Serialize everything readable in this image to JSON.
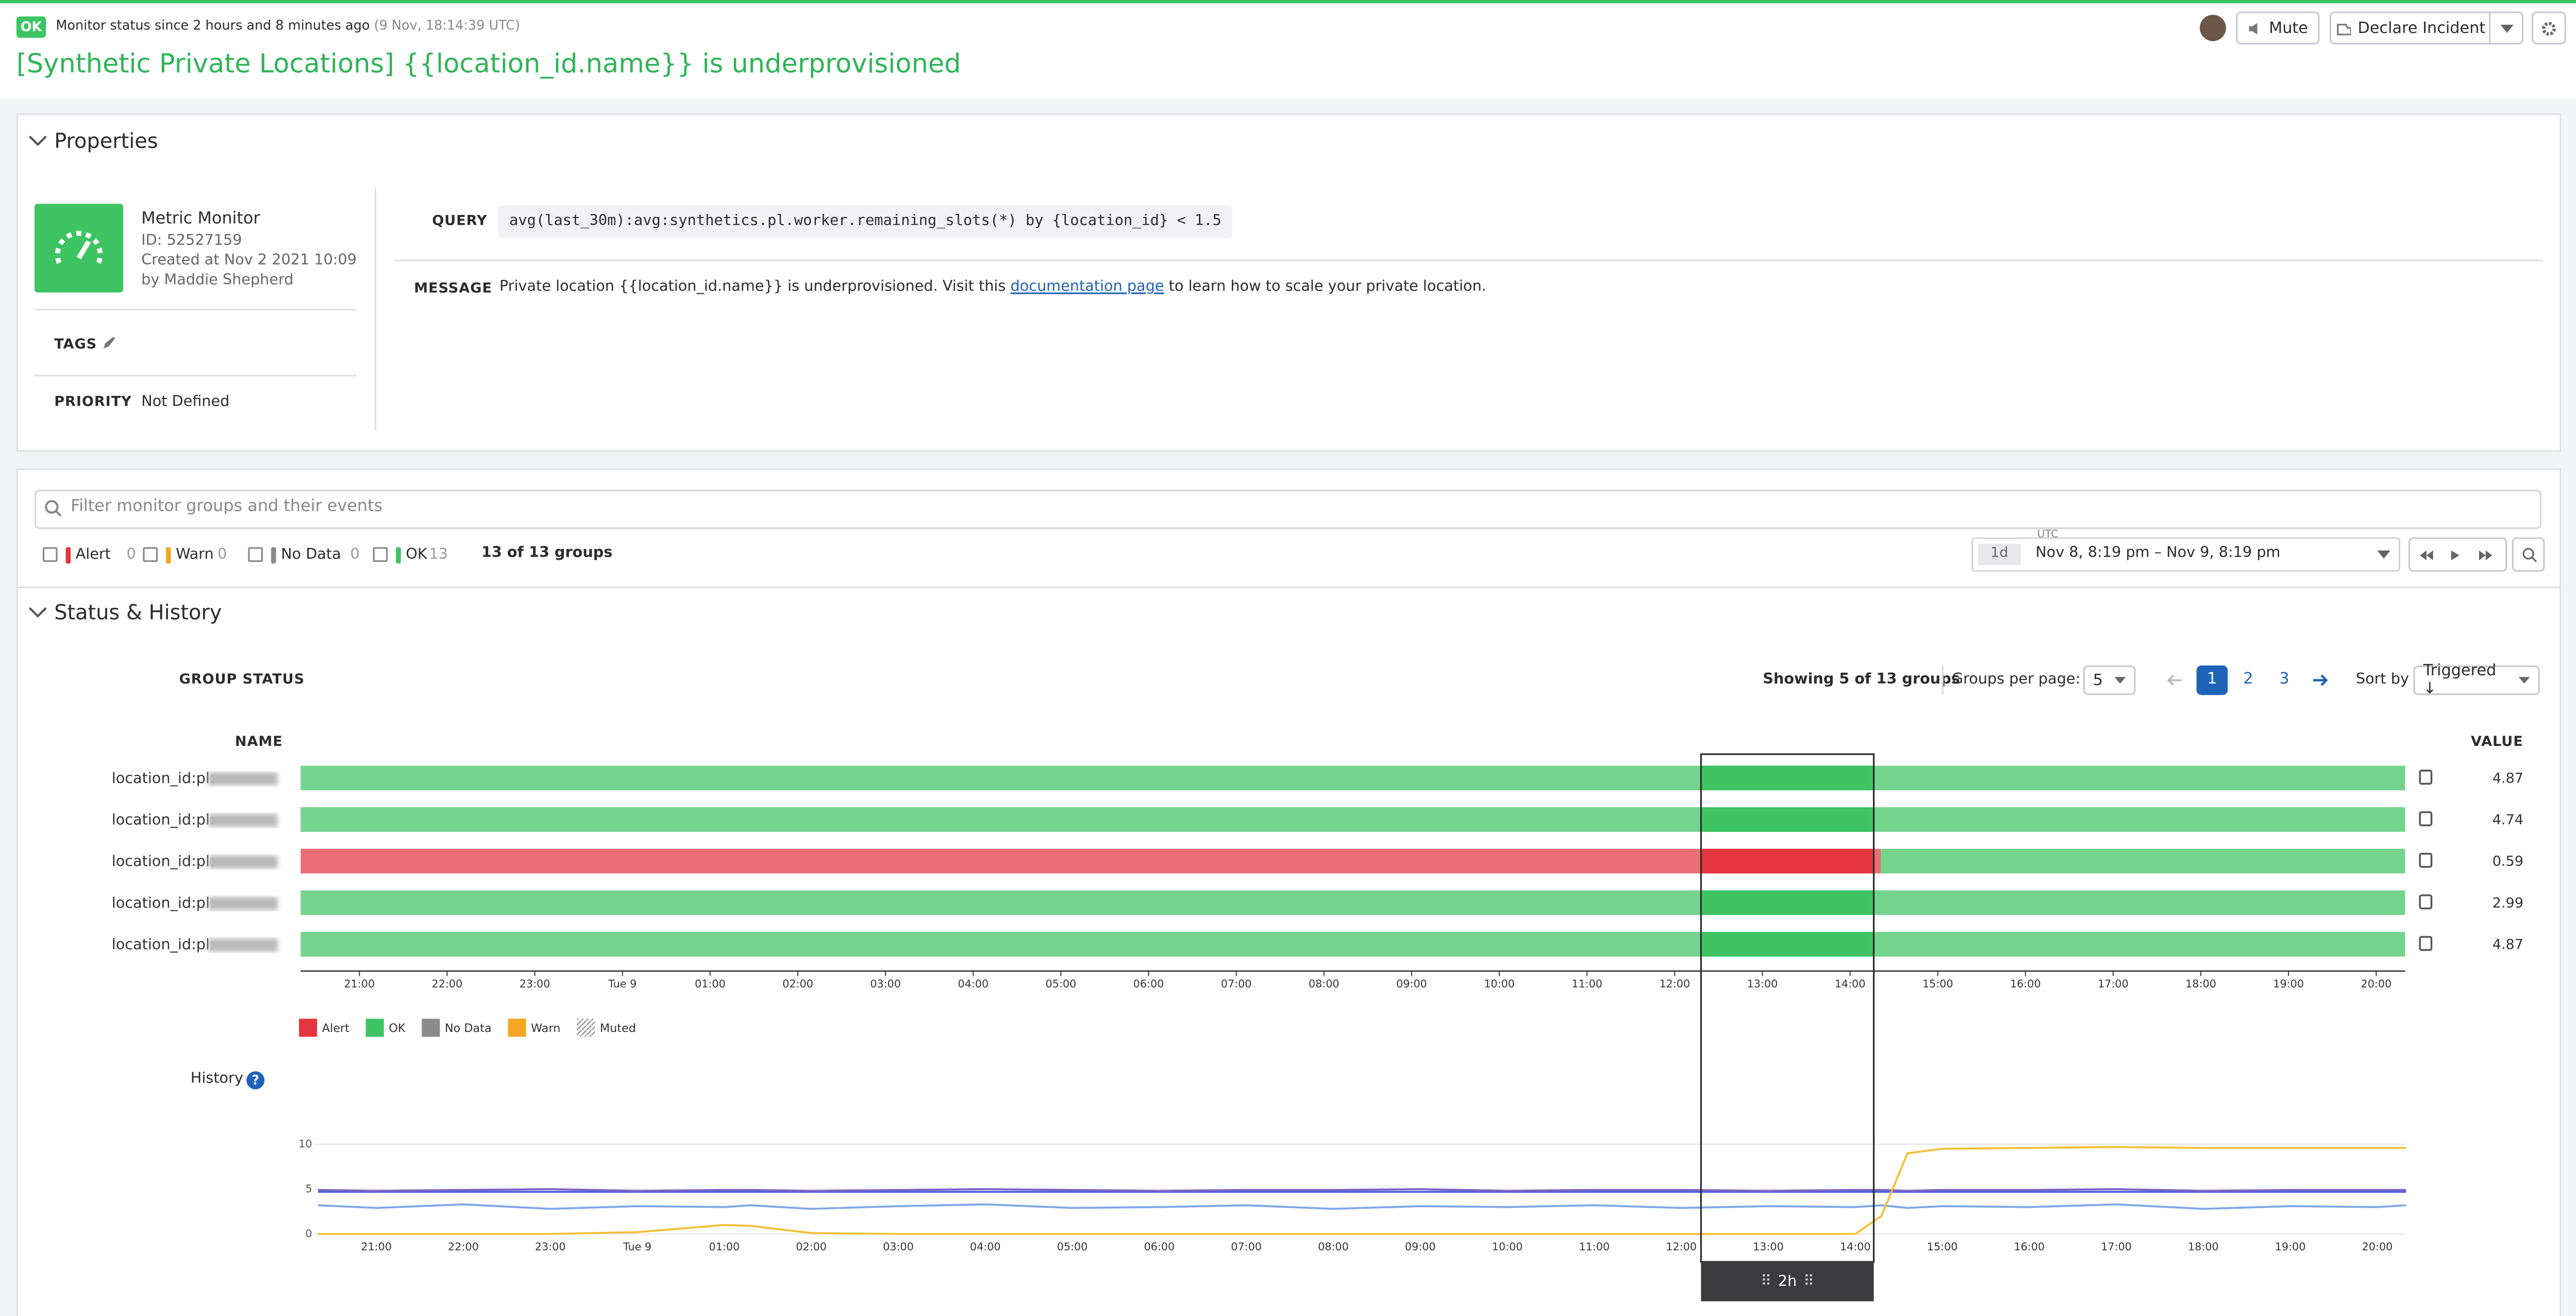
{
  "header": {
    "status": "OK",
    "status_text": "Monitor status since 2 hours and 8 minutes ago",
    "status_time": "(9 Nov, 18:14:39 UTC)",
    "title": "[Synthetic Private Locations] {{location_id.name}} is underprovisioned",
    "buttons": [
      "Mute",
      "Declare Incident"
    ]
  },
  "properties": {
    "heading": "Properties",
    "monitor_type": "Metric Monitor",
    "id": "ID: 52527159",
    "created": "Created at Nov 2 2021 10:09",
    "author": "by Maddie Shepherd",
    "tags_label": "TAGS",
    "priority_label": "PRIORITY",
    "priority": "Not Defined",
    "query_label": "QUERY",
    "query": "avg(last_30m):avg:synthetics.pl.worker.remaining_slots(*) by {location_id} < 1.5",
    "message_label": "MESSAGE",
    "message_before": "Private location {{location_id.name}} is underprovisioned. Visit this ",
    "message_link": "documentation page",
    "message_after": " to learn how to scale your private location."
  },
  "filters": {
    "search_placeholder": "Filter monitor groups and their events",
    "states": [
      {
        "name": "Alert",
        "count": 0,
        "color": "#e5353f"
      },
      {
        "name": "Warn",
        "count": 0,
        "color": "#f5a623"
      },
      {
        "name": "No Data",
        "count": 0,
        "color": "#8b8b8b"
      },
      {
        "name": "OK",
        "count": 13,
        "color": "#3ec463"
      }
    ],
    "group_count": "13 of 13 groups",
    "range_unit": "1d",
    "timezone": "UTC",
    "range": "Nov 8, 8:19 pm – Nov 9, 8:19 pm"
  },
  "status_history": {
    "heading": "Status & History",
    "group_status_label": "GROUP STATUS",
    "showing": "Showing 5 of 13 groups",
    "per_page_label": "Groups per page:",
    "per_page": 5,
    "pages": [
      1,
      2,
      3
    ],
    "sort_label": "Sort by",
    "sort": "Triggered ↓",
    "name_header": "NAME",
    "value_header": "VALUE",
    "timeline": {
      "xlim": [
        20.33,
        44.33
      ],
      "xticks": [
        {
          "value": 21,
          "label": "21:00"
        },
        {
          "value": 22,
          "label": "22:00"
        },
        {
          "value": 23,
          "label": "23:00"
        },
        {
          "value": 24,
          "label": "Tue 9"
        },
        {
          "value": 25,
          "label": "01:00"
        },
        {
          "value": 26,
          "label": "02:00"
        },
        {
          "value": 27,
          "label": "03:00"
        },
        {
          "value": 28,
          "label": "04:00"
        },
        {
          "value": 29,
          "label": "05:00"
        },
        {
          "value": 30,
          "label": "06:00"
        },
        {
          "value": 31,
          "label": "07:00"
        },
        {
          "value": 32,
          "label": "08:00"
        },
        {
          "value": 33,
          "label": "09:00"
        },
        {
          "value": 34,
          "label": "10:00"
        },
        {
          "value": 35,
          "label": "11:00"
        },
        {
          "value": 36,
          "label": "12:00"
        },
        {
          "value": 37,
          "label": "13:00"
        },
        {
          "value": 38,
          "label": "14:00"
        },
        {
          "value": 39,
          "label": "15:00"
        },
        {
          "value": 40,
          "label": "16:00"
        },
        {
          "value": 41,
          "label": "17:00"
        },
        {
          "value": 42,
          "label": "18:00"
        },
        {
          "value": 43,
          "label": "19:00"
        },
        {
          "value": 44,
          "label": "20:00"
        }
      ],
      "rows": [
        {
          "name": "location_id:pl:",
          "value": 4.87,
          "segments": [
            {
              "state": "OK",
              "from": 20.33,
              "to": 44.33
            }
          ]
        },
        {
          "name": "location_id:pl:",
          "value": 4.74,
          "segments": [
            {
              "state": "OK",
              "from": 20.33,
              "to": 44.33
            }
          ]
        },
        {
          "name": "location_id:pl:",
          "value": 0.59,
          "segments": [
            {
              "state": "Alert",
              "from": 20.33,
              "to": 38.35
            },
            {
              "state": "OK",
              "from": 38.35,
              "to": 44.33
            }
          ]
        },
        {
          "name": "location_id:pl:",
          "value": 2.99,
          "segments": [
            {
              "state": "OK",
              "from": 20.33,
              "to": 44.33
            }
          ]
        },
        {
          "name": "location_id:pl:",
          "value": 4.87,
          "segments": [
            {
              "state": "OK",
              "from": 20.33,
              "to": 44.33
            }
          ]
        }
      ],
      "window": {
        "from": 36.3,
        "to": 38.27,
        "label": "2h"
      }
    },
    "legend": [
      {
        "name": "Alert",
        "color": "#e5353f"
      },
      {
        "name": "OK",
        "color": "#3ec463"
      },
      {
        "name": "No Data",
        "color": "#8b8b8b"
      },
      {
        "name": "Warn",
        "color": "#f5a623"
      },
      {
        "name": "Muted",
        "pattern": "hatch"
      }
    ],
    "history_label": "History",
    "history": {
      "type": "line",
      "xlim": [
        20.13,
        44.32
      ],
      "ylim": [
        0,
        11
      ],
      "yticks": [
        0,
        5,
        10
      ],
      "grid": true,
      "xticks": [
        {
          "value": 21,
          "label": "21:00"
        },
        {
          "value": 22,
          "label": "22:00"
        },
        {
          "value": 23,
          "label": "23:00"
        },
        {
          "value": 24,
          "label": "Tue 9"
        },
        {
          "value": 25,
          "label": "01:00"
        },
        {
          "value": 26,
          "label": "02:00"
        },
        {
          "value": 27,
          "label": "03:00"
        },
        {
          "value": 28,
          "label": "04:00"
        },
        {
          "value": 29,
          "label": "05:00"
        },
        {
          "value": 30,
          "label": "06:00"
        },
        {
          "value": 31,
          "label": "07:00"
        },
        {
          "value": 32,
          "label": "08:00"
        },
        {
          "value": 33,
          "label": "09:00"
        },
        {
          "value": 34,
          "label": "10:00"
        },
        {
          "value": 35,
          "label": "11:00"
        },
        {
          "value": 36,
          "label": "12:00"
        },
        {
          "value": 37,
          "label": "13:00"
        },
        {
          "value": 38,
          "label": "14:00"
        },
        {
          "value": 39,
          "label": "15:00"
        },
        {
          "value": 40,
          "label": "16:00"
        },
        {
          "value": 41,
          "label": "17:00"
        },
        {
          "value": 42,
          "label": "18:00"
        },
        {
          "value": 43,
          "label": "19:00"
        },
        {
          "value": 44,
          "label": "20:00"
        }
      ],
      "x": [
        20.33,
        21,
        22,
        23,
        24,
        25,
        25.3,
        26,
        27,
        28,
        29,
        30,
        31,
        32,
        33,
        34,
        35,
        36,
        37,
        38,
        38.3,
        38.6,
        39,
        40,
        41,
        42,
        43,
        44,
        44.33
      ],
      "series": [
        {
          "color": "#7fa7e8",
          "values": [
            3.2,
            2.9,
            3.3,
            2.8,
            3.1,
            3.0,
            3.2,
            2.8,
            3.1,
            3.3,
            2.9,
            3.0,
            3.2,
            2.8,
            3.1,
            3.0,
            3.2,
            2.9,
            3.1,
            3.0,
            3.2,
            2.9,
            3.1,
            3.0,
            3.3,
            2.8,
            3.1,
            3.0,
            3.2
          ]
        },
        {
          "color": "#4f63e0",
          "values": [
            4.7,
            4.7,
            4.7,
            4.7,
            4.7,
            4.7,
            4.7,
            4.7,
            4.7,
            4.7,
            4.7,
            4.7,
            4.7,
            4.7,
            4.7,
            4.7,
            4.7,
            4.7,
            4.7,
            4.7,
            4.7,
            4.7,
            4.7,
            4.7,
            4.7,
            4.7,
            4.7,
            4.7,
            4.7
          ]
        },
        {
          "color": "#7b61c4",
          "values": [
            4.9,
            4.8,
            4.9,
            5.0,
            4.8,
            4.9,
            4.9,
            4.8,
            4.9,
            5.0,
            4.9,
            4.8,
            4.9,
            4.9,
            5.0,
            4.8,
            4.9,
            4.9,
            4.8,
            4.9,
            4.9,
            4.8,
            4.9,
            4.9,
            5.0,
            4.8,
            4.9,
            4.9,
            4.9
          ]
        },
        {
          "color": "#f2c037",
          "values": [
            0,
            0,
            0,
            0,
            0.2,
            1.0,
            0.9,
            0.1,
            0,
            0,
            0,
            0,
            0,
            0,
            0,
            0,
            0,
            0,
            0,
            0,
            2,
            9,
            9.5,
            9.6,
            9.7,
            9.6,
            9.6,
            9.6,
            9.6
          ]
        }
      ]
    }
  }
}
